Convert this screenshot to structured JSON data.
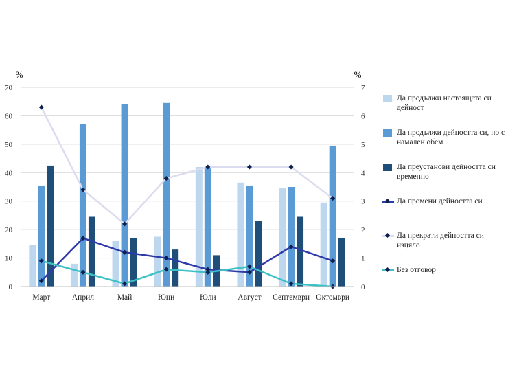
{
  "chart_data": {
    "type": "bar+line",
    "categories": [
      "Март",
      "Април",
      "Май",
      "Юни",
      "Юли",
      "Август",
      "Септември",
      "Октомври"
    ],
    "y_left": {
      "label": "%",
      "range": [
        0,
        70
      ],
      "ticks": [
        0,
        10,
        20,
        30,
        40,
        50,
        60,
        70
      ]
    },
    "y_right": {
      "label": "%",
      "range": [
        0,
        7
      ],
      "ticks": [
        0,
        1,
        2,
        3,
        4,
        5,
        6,
        7
      ]
    },
    "grid": true,
    "legend_position": "right",
    "bar_series": [
      {
        "name": "Да продължи настоящата си дейност",
        "color": "#bdd7ee",
        "axis": "left",
        "values": [
          14.5,
          8,
          16,
          17.5,
          42,
          36.5,
          34.5,
          29.5
        ]
      },
      {
        "name": "Да продължи дейността си, но с намален обем",
        "color": "#5b9bd5",
        "axis": "left",
        "values": [
          35.5,
          57,
          64,
          64.5,
          42,
          35.5,
          35,
          49.5
        ]
      },
      {
        "name": "Да преустанови дейността си временно",
        "color": "#1f4e79",
        "axis": "left",
        "values": [
          42.5,
          24.5,
          17,
          13,
          11,
          23,
          24.5,
          17
        ]
      }
    ],
    "line_series": [
      {
        "name": "Да промени дейността си",
        "color": "#2e3aa8",
        "axis": "right",
        "values": [
          0.2,
          1.7,
          1.2,
          1.0,
          0.6,
          0.5,
          1.4,
          0.9
        ]
      },
      {
        "name": "Да прекрати дейността си изцяло",
        "color": "#dcdcf0",
        "axis": "right",
        "values": [
          6.3,
          3.4,
          2.2,
          3.8,
          4.2,
          4.2,
          4.2,
          3.1
        ]
      },
      {
        "name": "Без отговор",
        "color": "#3cc0c6",
        "axis": "right",
        "values": [
          0.9,
          0.5,
          0.1,
          0.6,
          0.5,
          0.7,
          0.1,
          0.0
        ]
      }
    ]
  }
}
